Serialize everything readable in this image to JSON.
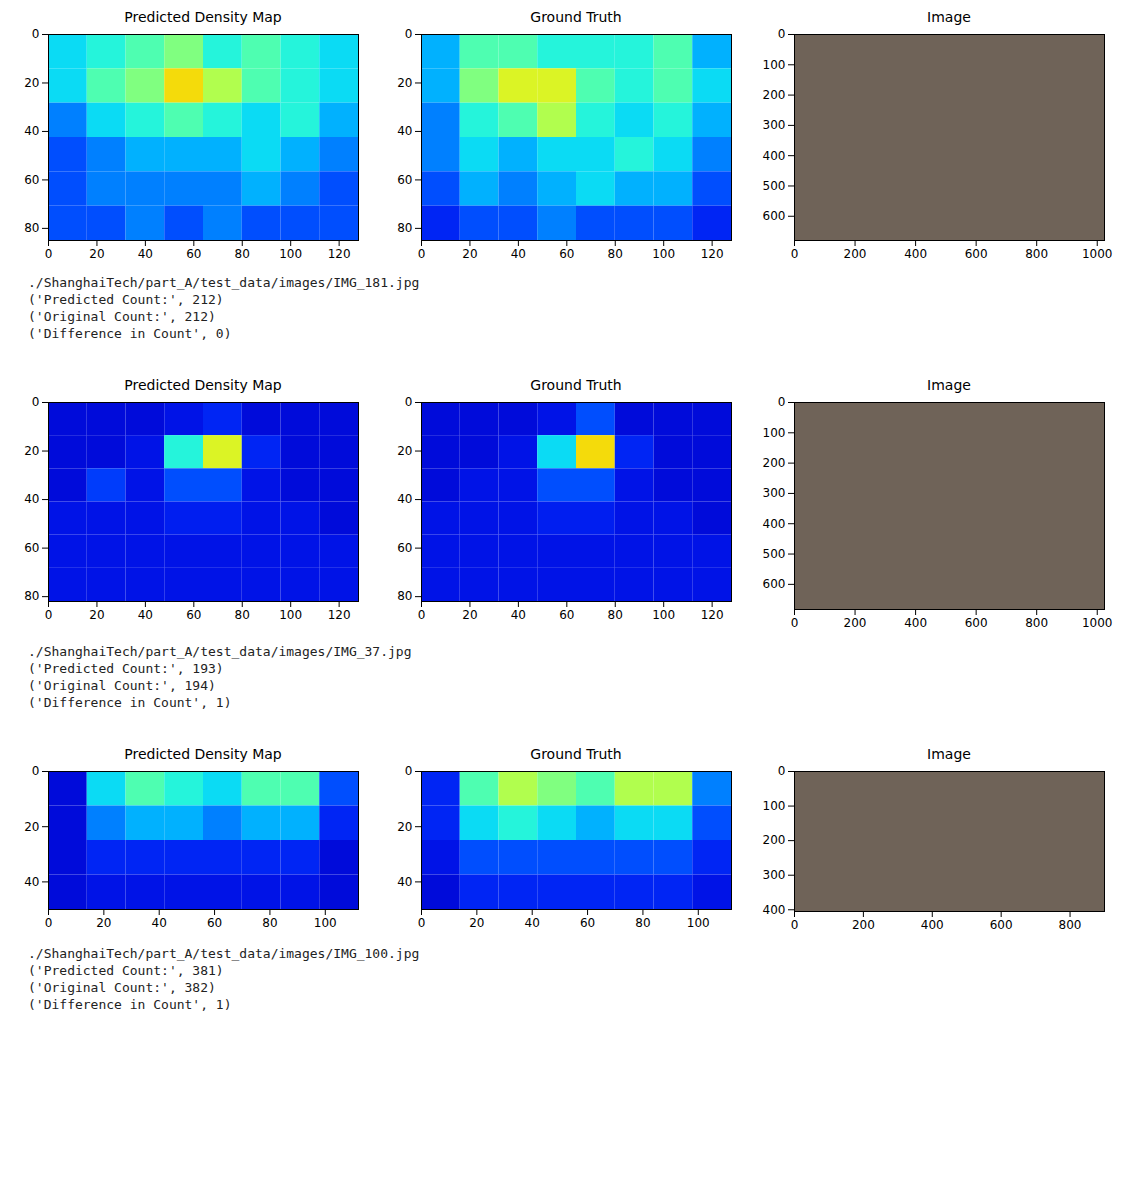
{
  "chart_data": [
    {
      "type": "heatmap",
      "title": "Predicted Density Map",
      "xlim": [
        0,
        128
      ],
      "ylim": [
        85,
        0
      ],
      "xticks": [
        0,
        20,
        40,
        60,
        80,
        100,
        120
      ],
      "yticks": [
        0,
        20,
        40,
        60,
        80
      ],
      "color": "jet",
      "zlim": [
        0,
        1
      ],
      "cells": [
        [
          0.35,
          0.4,
          0.45,
          0.5,
          0.4,
          0.45,
          0.4,
          0.35
        ],
        [
          0.35,
          0.45,
          0.5,
          0.65,
          0.55,
          0.45,
          0.4,
          0.35
        ],
        [
          0.25,
          0.35,
          0.4,
          0.45,
          0.4,
          0.35,
          0.4,
          0.3
        ],
        [
          0.2,
          0.25,
          0.3,
          0.3,
          0.3,
          0.35,
          0.3,
          0.25
        ],
        [
          0.2,
          0.25,
          0.25,
          0.25,
          0.25,
          0.3,
          0.25,
          0.2
        ],
        [
          0.2,
          0.2,
          0.25,
          0.2,
          0.25,
          0.2,
          0.2,
          0.2
        ]
      ]
    },
    {
      "type": "heatmap",
      "title": "Ground Truth",
      "xlim": [
        0,
        128
      ],
      "ylim": [
        85,
        0
      ],
      "xticks": [
        0,
        20,
        40,
        60,
        80,
        100,
        120
      ],
      "yticks": [
        0,
        20,
        40,
        60,
        80
      ],
      "color": "jet",
      "zlim": [
        0,
        1
      ],
      "cells": [
        [
          0.3,
          0.45,
          0.45,
          0.4,
          0.4,
          0.4,
          0.45,
          0.3
        ],
        [
          0.3,
          0.5,
          0.6,
          0.6,
          0.45,
          0.4,
          0.45,
          0.35
        ],
        [
          0.25,
          0.4,
          0.45,
          0.55,
          0.4,
          0.35,
          0.4,
          0.3
        ],
        [
          0.25,
          0.35,
          0.3,
          0.35,
          0.35,
          0.4,
          0.35,
          0.25
        ],
        [
          0.2,
          0.3,
          0.25,
          0.3,
          0.35,
          0.3,
          0.3,
          0.2
        ],
        [
          0.15,
          0.2,
          0.2,
          0.25,
          0.2,
          0.2,
          0.2,
          0.15
        ]
      ]
    },
    {
      "type": "image",
      "title": "Image",
      "xlim": [
        0,
        1024
      ],
      "ylim": [
        680,
        0
      ],
      "xticks": [
        0,
        200,
        400,
        600,
        800,
        1000
      ],
      "yticks": [
        0,
        100,
        200,
        300,
        400,
        500,
        600
      ]
    },
    {
      "type": "heatmap",
      "title": "Predicted Density Map",
      "xlim": [
        0,
        128
      ],
      "ylim": [
        82,
        0
      ],
      "xticks": [
        0,
        20,
        40,
        60,
        80,
        100,
        120
      ],
      "yticks": [
        0,
        20,
        40,
        60,
        80
      ],
      "color": "jet",
      "zlim": [
        0,
        1
      ],
      "cells": [
        [
          0.1,
          0.1,
          0.1,
          0.12,
          0.15,
          0.1,
          0.1,
          0.1
        ],
        [
          0.1,
          0.1,
          0.12,
          0.4,
          0.6,
          0.15,
          0.1,
          0.1
        ],
        [
          0.1,
          0.18,
          0.12,
          0.2,
          0.2,
          0.12,
          0.1,
          0.1
        ],
        [
          0.12,
          0.12,
          0.12,
          0.14,
          0.14,
          0.12,
          0.12,
          0.1
        ],
        [
          0.12,
          0.12,
          0.12,
          0.12,
          0.12,
          0.12,
          0.12,
          0.12
        ],
        [
          0.12,
          0.12,
          0.12,
          0.12,
          0.12,
          0.12,
          0.12,
          0.12
        ]
      ]
    },
    {
      "type": "heatmap",
      "title": "Ground Truth",
      "xlim": [
        0,
        128
      ],
      "ylim": [
        82,
        0
      ],
      "xticks": [
        0,
        20,
        40,
        60,
        80,
        100,
        120
      ],
      "yticks": [
        0,
        20,
        40,
        60,
        80
      ],
      "color": "jet",
      "zlim": [
        0,
        1
      ],
      "cells": [
        [
          0.1,
          0.1,
          0.1,
          0.12,
          0.2,
          0.1,
          0.1,
          0.1
        ],
        [
          0.1,
          0.1,
          0.12,
          0.35,
          0.65,
          0.15,
          0.1,
          0.1
        ],
        [
          0.1,
          0.12,
          0.12,
          0.2,
          0.2,
          0.12,
          0.1,
          0.1
        ],
        [
          0.12,
          0.12,
          0.12,
          0.14,
          0.14,
          0.12,
          0.12,
          0.1
        ],
        [
          0.12,
          0.12,
          0.12,
          0.12,
          0.12,
          0.12,
          0.12,
          0.12
        ],
        [
          0.12,
          0.12,
          0.12,
          0.12,
          0.12,
          0.12,
          0.12,
          0.12
        ]
      ]
    },
    {
      "type": "image",
      "title": "Image",
      "xlim": [
        0,
        1024
      ],
      "ylim": [
        683,
        0
      ],
      "xticks": [
        0,
        200,
        400,
        600,
        800,
        1000
      ],
      "yticks": [
        0,
        100,
        200,
        300,
        400,
        500,
        600
      ]
    },
    {
      "type": "heatmap",
      "title": "Predicted Density Map",
      "xlim": [
        0,
        112
      ],
      "ylim": [
        50,
        0
      ],
      "xticks": [
        0,
        20,
        40,
        60,
        80,
        100
      ],
      "yticks": [
        0,
        20,
        40
      ],
      "color": "jet",
      "zlim": [
        0,
        1
      ],
      "cells": [
        [
          0.1,
          0.35,
          0.45,
          0.4,
          0.35,
          0.45,
          0.45,
          0.2
        ],
        [
          0.1,
          0.25,
          0.3,
          0.3,
          0.25,
          0.3,
          0.3,
          0.15
        ],
        [
          0.1,
          0.15,
          0.15,
          0.15,
          0.15,
          0.15,
          0.15,
          0.1
        ],
        [
          0.1,
          0.12,
          0.12,
          0.12,
          0.12,
          0.12,
          0.12,
          0.1
        ]
      ]
    },
    {
      "type": "heatmap",
      "title": "Ground Truth",
      "xlim": [
        0,
        112
      ],
      "ylim": [
        50,
        0
      ],
      "xticks": [
        0,
        20,
        40,
        60,
        80,
        100
      ],
      "yticks": [
        0,
        20,
        40
      ],
      "color": "jet",
      "zlim": [
        0,
        1
      ],
      "cells": [
        [
          0.15,
          0.45,
          0.55,
          0.5,
          0.45,
          0.55,
          0.55,
          0.25
        ],
        [
          0.15,
          0.35,
          0.4,
          0.35,
          0.3,
          0.35,
          0.35,
          0.2
        ],
        [
          0.12,
          0.2,
          0.2,
          0.2,
          0.2,
          0.2,
          0.2,
          0.15
        ],
        [
          0.1,
          0.15,
          0.15,
          0.15,
          0.15,
          0.15,
          0.15,
          0.12
        ]
      ]
    },
    {
      "type": "image",
      "title": "Image",
      "xlim": [
        0,
        900
      ],
      "ylim": [
        405,
        0
      ],
      "xticks": [
        0,
        200,
        400,
        600,
        800
      ],
      "yticks": [
        0,
        100,
        200,
        300,
        400
      ]
    }
  ],
  "captions": [
    [
      "./ShanghaiTech/part_A/test_data/images/IMG_181.jpg",
      "('Predicted Count:', 212)",
      "('Original Count:', 212)",
      "('Difference in Count', 0)"
    ],
    [
      "./ShanghaiTech/part_A/test_data/images/IMG_37.jpg",
      "('Predicted Count:', 193)",
      "('Original Count:', 194)",
      "('Difference in Count', 1)"
    ],
    [
      "./ShanghaiTech/part_A/test_data/images/IMG_100.jpg",
      "('Predicted Count:', 381)",
      "('Original Count:', 382)",
      "('Difference in Count', 1)"
    ]
  ]
}
